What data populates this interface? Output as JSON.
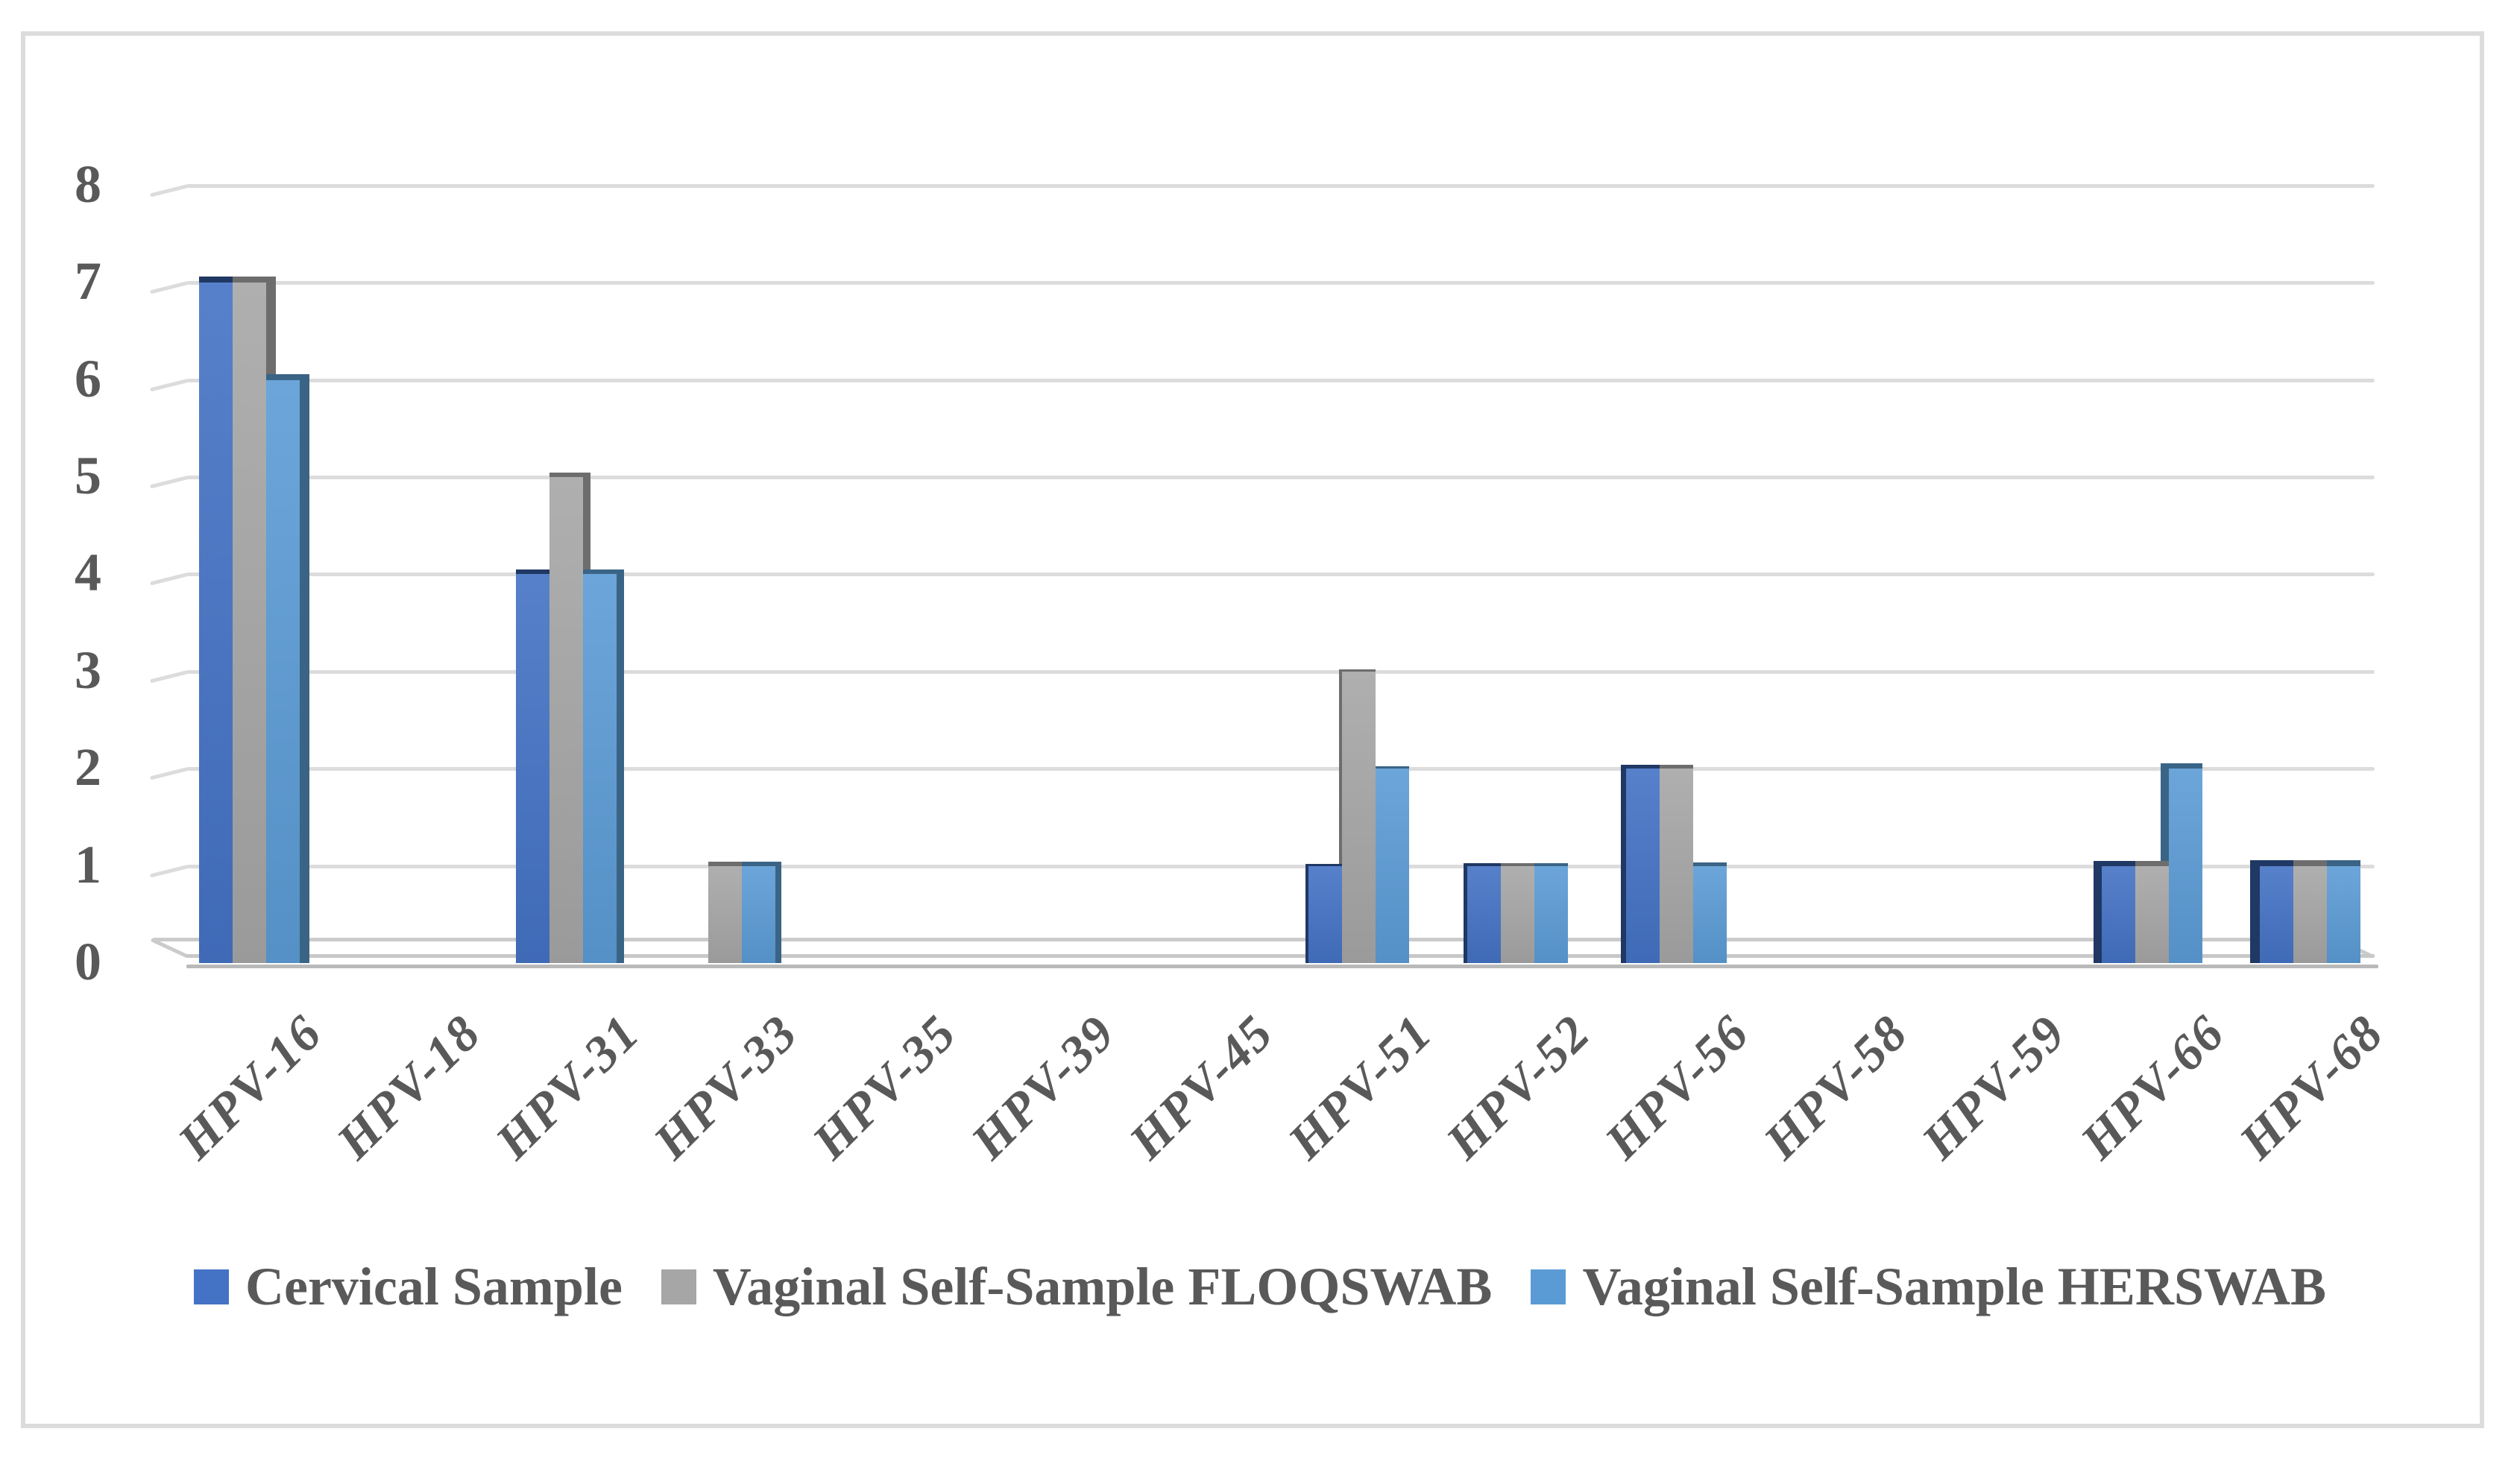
{
  "chart_data": {
    "type": "bar",
    "style": "3d-clustered-column",
    "title": "",
    "xlabel": "",
    "ylabel": "",
    "categories": [
      "HPV-16",
      "HPV-18",
      "HPV-31",
      "HPV-33",
      "HPV-35",
      "HPV-39",
      "HPV-45",
      "HPV-51",
      "HPV-52",
      "HPV-56",
      "HPV-58",
      "HPV-59",
      "HPV-66",
      "HPV-68"
    ],
    "series": [
      {
        "name": "Cervical Sample",
        "color": "#4472C4",
        "side_color": "#1F3864",
        "values": [
          7,
          0,
          4,
          0,
          0,
          0,
          0,
          1,
          1,
          2,
          0,
          0,
          1,
          1
        ]
      },
      {
        "name": "Vaginal Self-Sample FLOQSWAB",
        "color": "#A6A6A6",
        "side_color": "#6D6D6D",
        "values": [
          7,
          0,
          5,
          1,
          0,
          0,
          0,
          3,
          1,
          2,
          0,
          0,
          1,
          1
        ]
      },
      {
        "name": "Vaginal Self-Sample HERSWAB",
        "color": "#5B9BD5",
        "side_color": "#3A6486",
        "values": [
          6,
          0,
          4,
          1,
          0,
          0,
          0,
          2,
          1,
          1,
          0,
          0,
          2,
          1
        ]
      }
    ],
    "ylim": [
      0,
      8
    ],
    "ytick_step": 1,
    "y_ticks": [
      "0",
      "1",
      "2",
      "3",
      "4",
      "5",
      "6",
      "7",
      "8"
    ],
    "grid": true,
    "legend_position": "bottom"
  },
  "colors": {
    "gridline": "#DCDCDC",
    "figure_border": "#DCDCDC",
    "axis_text": "#595959",
    "legend_text": "#595959",
    "floor_back_line": "#CBCBCB",
    "floor_front_line": "#C8C8C8",
    "floor_bottom_line": "#B9B9B9",
    "background": "#FFFFFF"
  }
}
